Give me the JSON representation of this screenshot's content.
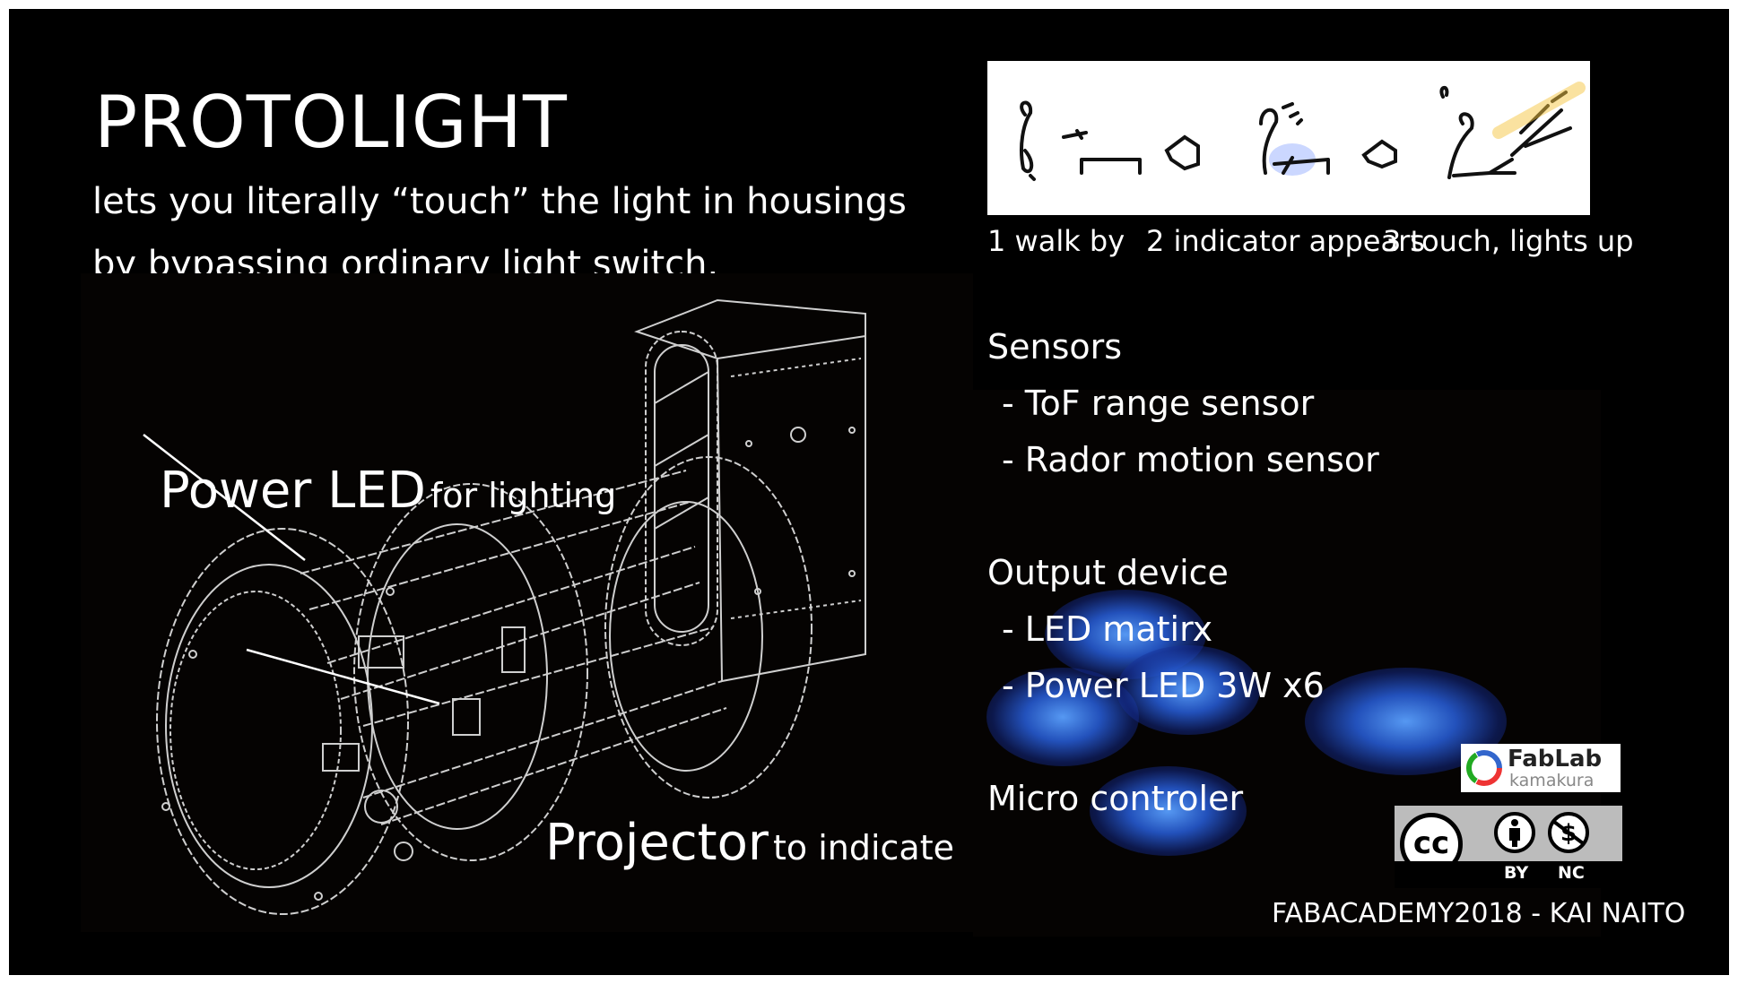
{
  "title": "PROTOLIGHT",
  "subtitle": {
    "line1": "lets you literally “touch” the light in housings",
    "line2": "by bypassing ordinary light switch."
  },
  "steps": [
    {
      "label": "1 walk by"
    },
    {
      "label": "2 indicator appears"
    },
    {
      "label": "3 touch, lights up"
    }
  ],
  "callouts": {
    "power_led": {
      "big": "Power LED",
      "small": "for lighting"
    },
    "projector": {
      "big": "Projector",
      "small": "to indicate"
    }
  },
  "specs": {
    "sensors": {
      "heading": "Sensors",
      "items": [
        "- ToF range sensor",
        "- Rador motion sensor"
      ]
    },
    "output": {
      "heading": "Output device",
      "items": [
        "- LED matirx",
        "- Power LED 3W x6"
      ]
    },
    "micro": {
      "heading": "Micro controler"
    }
  },
  "badges": {
    "fablab": {
      "name": "FabLab",
      "place": "kamakura"
    },
    "license": {
      "cc": "cc",
      "by": "BY",
      "nc": "NC"
    }
  },
  "credit": "FABACADEMY2018 - KAI NAITO",
  "colors": {
    "background": "#000000",
    "text": "#ffffff",
    "glow": "#3a7bff",
    "indicator": "#6a8cff",
    "light": "#f5c542"
  }
}
